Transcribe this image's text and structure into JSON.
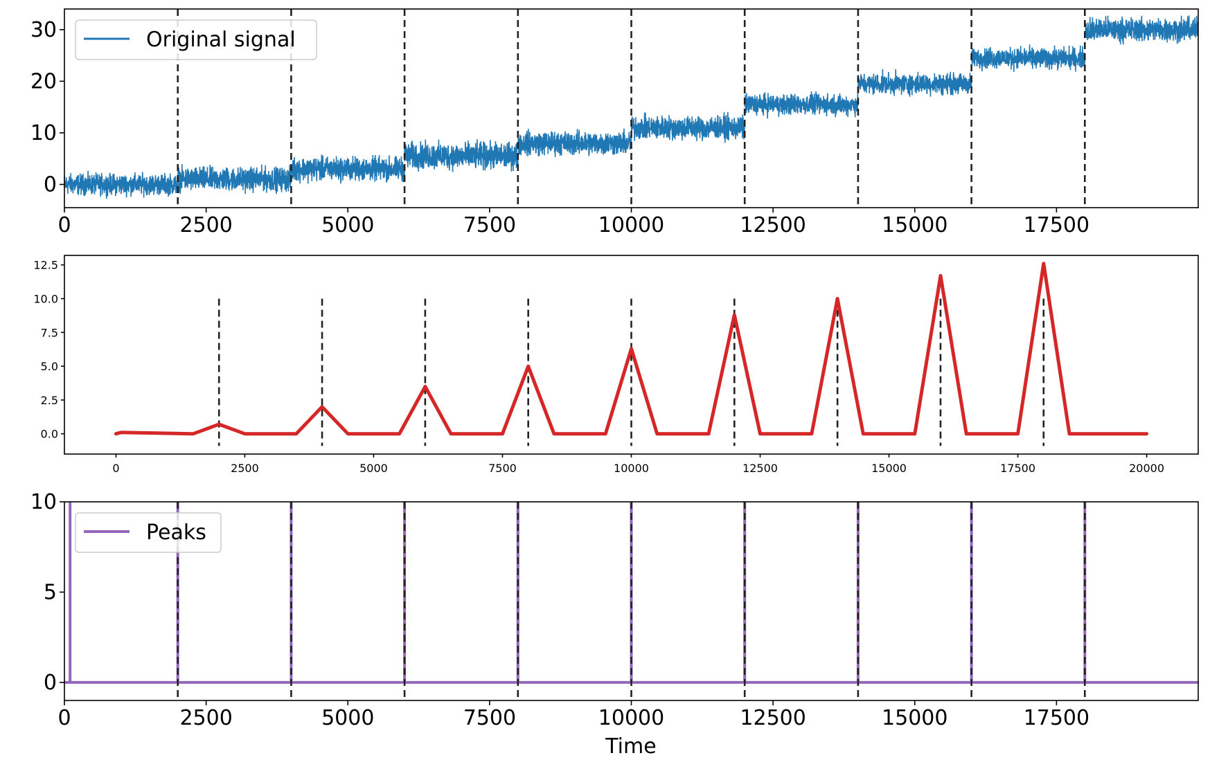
{
  "chart_data": [
    {
      "type": "line",
      "title": "",
      "xlabel": "",
      "ylabel": "",
      "xlim": [
        0,
        20000
      ],
      "ylim": [
        -4.5,
        34
      ],
      "xticks": [
        0,
        2500,
        5000,
        7500,
        10000,
        12500,
        15000,
        17500
      ],
      "xtick_labels": [
        "0",
        "2500",
        "5000",
        "7500",
        "10000",
        "12500",
        "15000",
        "17500"
      ],
      "yticks": [
        0,
        10,
        20,
        30
      ],
      "ytick_labels": [
        "0",
        "10",
        "20",
        "30"
      ],
      "legend_position": "top-left",
      "grid": false,
      "series": [
        {
          "name": "Original signal",
          "color": "#1f77b4",
          "style": "noisy step",
          "segments": [
            {
              "x_start": 0,
              "x_end": 2000,
              "level": 0,
              "noise_range": [
                -3.5,
                3.5
              ]
            },
            {
              "x_start": 2000,
              "x_end": 4000,
              "level": 1,
              "noise_range": [
                -3,
                5
              ]
            },
            {
              "x_start": 4000,
              "x_end": 6000,
              "level": 3,
              "noise_range": [
                -1,
                7
              ]
            },
            {
              "x_start": 6000,
              "x_end": 8000,
              "level": 6,
              "noise_range": [
                1,
                10
              ]
            },
            {
              "x_start": 8000,
              "x_end": 10000,
              "level": 8,
              "noise_range": [
                4,
                12
              ]
            },
            {
              "x_start": 10000,
              "x_end": 12000,
              "level": 11,
              "noise_range": [
                7,
                15
              ]
            },
            {
              "x_start": 12000,
              "x_end": 14000,
              "level": 15,
              "noise_range": [
                12,
                19
              ]
            },
            {
              "x_start": 14000,
              "x_end": 16000,
              "level": 20,
              "noise_range": [
                16,
                23
              ]
            },
            {
              "x_start": 16000,
              "x_end": 18000,
              "level": 25,
              "noise_range": [
                21,
                28
              ]
            },
            {
              "x_start": 18000,
              "x_end": 20000,
              "level": 30,
              "noise_range": [
                26,
                34
              ]
            }
          ]
        }
      ],
      "vlines": [
        2000,
        4000,
        6000,
        8000,
        10000,
        12000,
        14000,
        16000,
        18000
      ]
    },
    {
      "type": "line",
      "title": "",
      "xlabel": "",
      "ylabel": "",
      "xlim": [
        -1000,
        21000
      ],
      "ylim": [
        -1.5,
        13.2
      ],
      "xticks": [
        0,
        2500,
        5000,
        7500,
        10000,
        12500,
        15000,
        17500,
        20000
      ],
      "xtick_labels": [
        "0",
        "2500",
        "5000",
        "7500",
        "10000",
        "12500",
        "15000",
        "17500",
        "20000"
      ],
      "yticks": [
        0,
        2.5,
        5,
        7.5,
        10,
        12.5
      ],
      "ytick_labels": [
        "0.0",
        "2.5",
        "5.0",
        "7.5",
        "10.0",
        "12.5"
      ],
      "grid": false,
      "series": [
        {
          "color": "#d62728",
          "x": [
            0,
            100,
            1500,
            2000,
            2500,
            3500,
            4000,
            4500,
            5500,
            6000,
            6500,
            7500,
            8000,
            8500,
            9500,
            10000,
            10500,
            11500,
            12000,
            12500,
            13500,
            14000,
            14500,
            15500,
            16000,
            16500,
            17500,
            18000,
            18500,
            20000
          ],
          "y": [
            0,
            0.1,
            0,
            0.7,
            0,
            0,
            2.0,
            0,
            0,
            3.5,
            0,
            0,
            5.0,
            0,
            0,
            6.3,
            0,
            0,
            8.8,
            0,
            0,
            10.0,
            0,
            0,
            11.7,
            0,
            0,
            12.6,
            0,
            0
          ]
        }
      ],
      "vlines": [
        {
          "x": 2000,
          "ymax": 10
        },
        {
          "x": 4000,
          "ymax": 10
        },
        {
          "x": 6000,
          "ymax": 10
        },
        {
          "x": 8000,
          "ymax": 10
        },
        {
          "x": 10000,
          "ymax": 10
        },
        {
          "x": 12000,
          "ymax": 10
        },
        {
          "x": 14000,
          "ymax": 10
        },
        {
          "x": 16000,
          "ymax": 10
        },
        {
          "x": 18000,
          "ymax": 10
        }
      ]
    },
    {
      "type": "line",
      "title": "",
      "xlabel": "Time",
      "ylabel": "",
      "xlim": [
        0,
        20000
      ],
      "ylim": [
        -1,
        10
      ],
      "xticks": [
        0,
        2500,
        5000,
        7500,
        10000,
        12500,
        15000,
        17500
      ],
      "xtick_labels": [
        "0",
        "2500",
        "5000",
        "7500",
        "10000",
        "12500",
        "15000",
        "17500"
      ],
      "yticks": [
        0,
        5,
        10
      ],
      "ytick_labels": [
        "0",
        "5",
        "10"
      ],
      "legend_position": "top-left",
      "grid": false,
      "series": [
        {
          "name": "Peaks",
          "color": "#9467bd",
          "spikes_x": [
            100,
            2000,
            4000,
            6000,
            8000,
            10000,
            12000,
            14000,
            16000,
            18000
          ],
          "spike_height": 10,
          "baseline": 0
        }
      ],
      "vlines": [
        2000,
        4000,
        6000,
        8000,
        10000,
        12000,
        14000,
        16000,
        18000
      ]
    }
  ]
}
